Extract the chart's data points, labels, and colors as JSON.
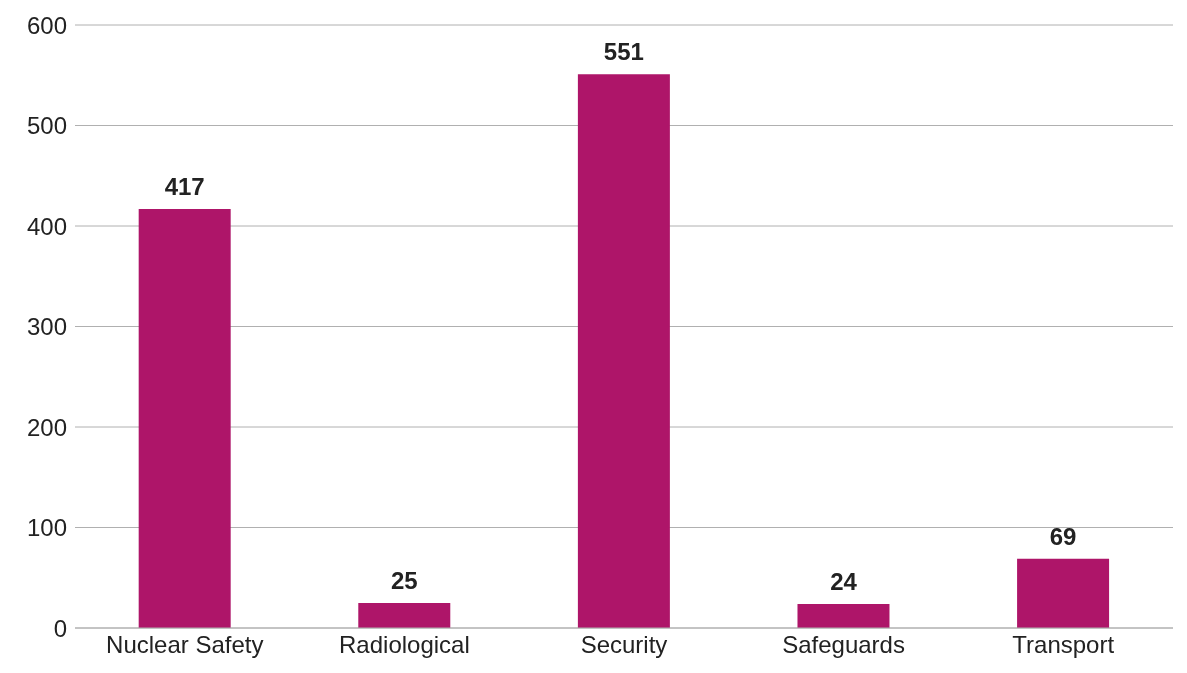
{
  "chart_data": {
    "type": "bar",
    "categories": [
      "Nuclear Safety",
      "Radiological",
      "Security",
      "Safeguards",
      "Transport"
    ],
    "values": [
      417,
      25,
      551,
      24,
      69
    ],
    "color": "#ae1569",
    "ylim": [
      0,
      600
    ],
    "yticks": [
      0,
      100,
      200,
      300,
      400,
      500,
      600
    ],
    "grid": "y",
    "data_labels": true
  }
}
